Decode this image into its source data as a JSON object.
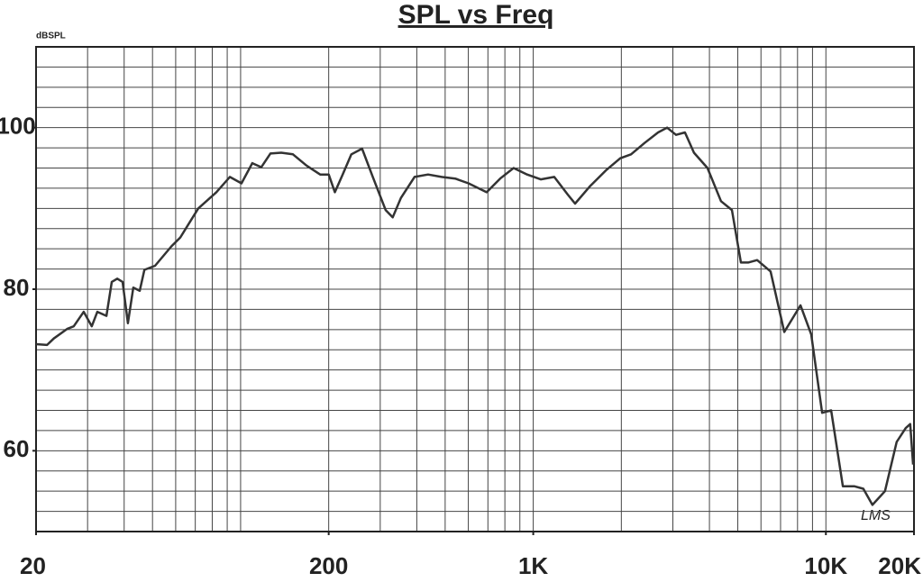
{
  "chart_data": {
    "type": "line",
    "title": "SPL vs Freq",
    "ylabel": "dBSPL",
    "annotation": "LMS",
    "xscale": "log",
    "grid": true,
    "color": "#333333",
    "xlim": [
      20,
      20000
    ],
    "ylim": [
      50,
      110
    ],
    "xticks": [
      20,
      200,
      {
        "value": 1000,
        "label": "1K"
      },
      {
        "value": 10000,
        "label": "10K"
      },
      {
        "value": 20000,
        "label": "20K"
      }
    ],
    "yticks": [
      60,
      80,
      100
    ],
    "xgrid": [
      20,
      30,
      40,
      50,
      60,
      70,
      80,
      90,
      100,
      200,
      300,
      400,
      500,
      600,
      700,
      800,
      900,
      1000,
      2000,
      3000,
      4000,
      5000,
      6000,
      7000,
      8000,
      9000,
      10000,
      20000
    ],
    "ygrid": [
      50,
      52.5,
      55,
      57.5,
      60,
      62.5,
      65,
      67.5,
      70,
      72.5,
      75,
      77.5,
      80,
      82.5,
      85,
      87.5,
      90,
      92.5,
      95,
      97.5,
      100,
      102.5,
      105,
      107.5,
      110
    ],
    "x": [
      20,
      21.8,
      23.0,
      25.6,
      26.9,
      29.1,
      31.0,
      32.4,
      34.8,
      36.3,
      37.9,
      39.5,
      41.2,
      43.0,
      45.2,
      46.9,
      51.0,
      58.0,
      62.2,
      71.7,
      82.6,
      91.9,
      100.7,
      109.6,
      117.7,
      126.4,
      137.7,
      151,
      168,
      187,
      200,
      210,
      222,
      239,
      260,
      283,
      313,
      331,
      353,
      393,
      437,
      486,
      541,
      601,
      693,
      771,
      857,
      953,
      1061,
      1180,
      1313,
      1390,
      1568,
      1770,
      1983,
      2159,
      2401,
      2670,
      2866,
      3076,
      3300,
      3541,
      3938,
      4380,
      4773,
      5126,
      5424,
      5823,
      6473,
      7208,
      8192,
      8910,
      9706,
      10420,
      11430,
      12530,
      13430,
      14420,
      15920,
      17460,
      18740,
      19410,
      19860
    ],
    "values": [
      73.2,
      73.1,
      73.9,
      75.1,
      75.4,
      77.2,
      75.4,
      77.2,
      76.7,
      80.9,
      81.3,
      80.9,
      75.8,
      80.2,
      79.8,
      82.4,
      82.9,
      85.3,
      86.4,
      90.0,
      92.0,
      93.9,
      93.1,
      95.6,
      95.1,
      96.8,
      96.9,
      96.7,
      95.3,
      94.2,
      94.2,
      92.0,
      94.0,
      96.7,
      97.4,
      93.9,
      89.8,
      88.9,
      91.3,
      93.9,
      94.2,
      93.9,
      93.7,
      93.1,
      92.0,
      93.7,
      95.0,
      94.2,
      93.6,
      93.9,
      91.7,
      90.6,
      92.8,
      94.7,
      96.2,
      96.7,
      98.1,
      99.4,
      100,
      99.1,
      99.4,
      96.9,
      95.0,
      90.9,
      89.8,
      83.3,
      83.3,
      83.6,
      82.2,
      74.7,
      78.0,
      74.4,
      64.7,
      65.0,
      55.6,
      55.6,
      55.3,
      53.3,
      55.0,
      61.1,
      62.8,
      63.3,
      58.3
    ]
  }
}
